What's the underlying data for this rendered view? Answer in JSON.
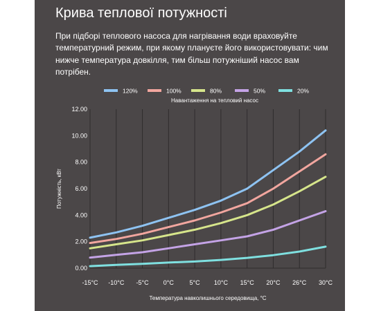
{
  "header": {
    "title": "Крива теплової потужності",
    "description": "При підборі теплового насоса для нагрівання води враховуйте температурний режим, при якому плануєте його використовувати: чим нижче температура довкілля, тим більш потужніший насос вам потрібен."
  },
  "chart_data": {
    "type": "line",
    "title": "Навантаження на тепловий насос",
    "xlabel": "Температура навколишнього середовища, °C",
    "ylabel": "Потужність, кВт",
    "categories": [
      "-15°C",
      "-10°C",
      "-5°C",
      "0°C",
      "5°C",
      "10°C",
      "15°C",
      "20°C",
      "26°C",
      "30°C"
    ],
    "ylim": [
      0,
      12
    ],
    "yticks": [
      "0.00",
      "2.00",
      "4.00",
      "6.00",
      "8.00",
      "10.00",
      "12.00"
    ],
    "grid": "vertical",
    "legend_position": "top",
    "series": [
      {
        "name": "120%",
        "color": "#8ec3f2",
        "values": [
          2.3,
          2.7,
          3.2,
          3.8,
          4.4,
          5.1,
          6.0,
          7.4,
          8.8,
          10.4
        ]
      },
      {
        "name": "100%",
        "color": "#f2a69f",
        "values": [
          1.9,
          2.2,
          2.6,
          3.1,
          3.6,
          4.2,
          4.9,
          6.0,
          7.3,
          8.6
        ]
      },
      {
        "name": "80%",
        "color": "#d6e58b",
        "values": [
          1.5,
          1.8,
          2.1,
          2.5,
          2.9,
          3.4,
          4.0,
          4.8,
          5.8,
          6.9
        ]
      },
      {
        "name": "50%",
        "color": "#c4a3e6",
        "values": [
          0.8,
          1.0,
          1.2,
          1.5,
          1.8,
          2.1,
          2.4,
          2.9,
          3.6,
          4.3
        ]
      },
      {
        "name": "20%",
        "color": "#7fe0e0",
        "values": [
          0.15,
          0.25,
          0.33,
          0.42,
          0.5,
          0.62,
          0.78,
          0.98,
          1.25,
          1.62
        ]
      }
    ]
  }
}
